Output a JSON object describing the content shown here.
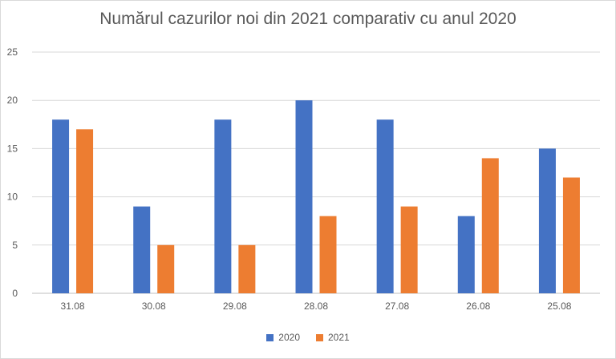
{
  "chart_data": {
    "type": "bar",
    "title": "Numărul cazurilor noi din 2021 comparativ cu anul 2020",
    "categories": [
      "31.08",
      "30.08",
      "29.08",
      "28.08",
      "27.08",
      "26.08",
      "25.08"
    ],
    "series": [
      {
        "name": "2020",
        "color": "#4472C4",
        "values": [
          18,
          9,
          18,
          20,
          18,
          8,
          15
        ]
      },
      {
        "name": "2021",
        "color": "#ED7D31",
        "values": [
          17,
          5,
          5,
          8,
          9,
          14,
          12
        ]
      }
    ],
    "ylim": [
      0,
      25
    ],
    "yticks": [
      "0",
      "5",
      "10",
      "15",
      "20",
      "25"
    ],
    "grid": true,
    "legend_position": "bottom",
    "xlabel": "",
    "ylabel": ""
  }
}
